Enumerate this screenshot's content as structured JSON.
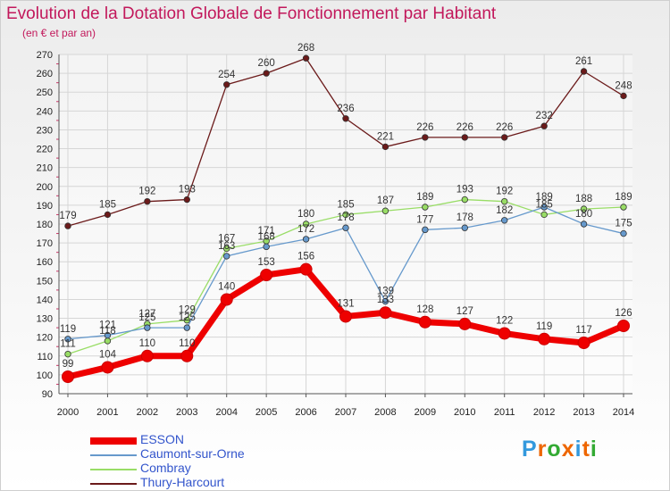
{
  "chart_data": {
    "type": "line",
    "title": "Evolution de la Dotation Globale de Fonctionnement par Habitant",
    "subtitle": "(en € et par an)",
    "x": [
      "2000",
      "2001",
      "2002",
      "2003",
      "2004",
      "2005",
      "2006",
      "2007",
      "2008",
      "2009",
      "2010",
      "2011",
      "2012",
      "2013",
      "2014"
    ],
    "ylim": [
      90,
      270
    ],
    "yticks": [
      90,
      100,
      110,
      120,
      130,
      140,
      150,
      160,
      170,
      180,
      190,
      200,
      210,
      220,
      230,
      240,
      250,
      260,
      270
    ],
    "grid": true,
    "legend_position": "bottom-left",
    "series": [
      {
        "name": "Thury-Harcourt",
        "color": "#6b1a1a",
        "values": [
          179,
          185,
          192,
          193,
          254,
          260,
          268,
          236,
          221,
          226,
          226,
          226,
          232,
          261,
          248
        ]
      },
      {
        "name": "Combray",
        "color": "#99dd66",
        "values": [
          111,
          118,
          127,
          129,
          167,
          171,
          180,
          185,
          187,
          189,
          193,
          192,
          185,
          188,
          189
        ]
      },
      {
        "name": "Caumont-sur-Orne",
        "color": "#6699cc",
        "values": [
          119,
          121,
          125,
          125,
          163,
          168,
          172,
          178,
          139,
          177,
          178,
          182,
          189,
          180,
          175
        ]
      },
      {
        "name": "ESSON",
        "color": "#ee0000",
        "values": [
          99,
          104,
          110,
          110,
          140,
          153,
          156,
          131,
          133,
          128,
          127,
          122,
          119,
          117,
          126
        ]
      }
    ]
  },
  "legend_order": [
    "ESSON",
    "Caumont-sur-Orne",
    "Combray",
    "Thury-Harcourt"
  ],
  "logo": {
    "letters": [
      "P",
      "r",
      "o",
      "x",
      "i",
      "t",
      "i"
    ],
    "colors": [
      "#3399dd",
      "#ee6600",
      "#33aa33",
      "#ee6600",
      "#3399dd",
      "#ee6600",
      "#33aa33"
    ]
  }
}
